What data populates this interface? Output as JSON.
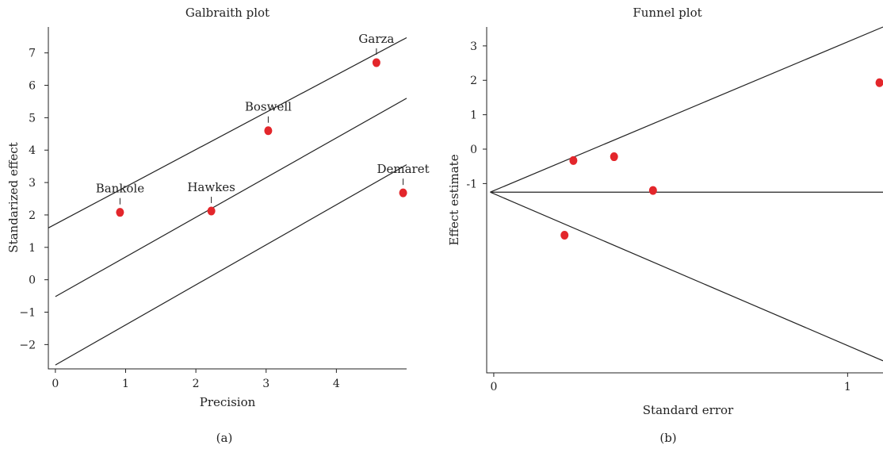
{
  "chart_data": [
    {
      "type": "scatter",
      "title": "Galbraith plot",
      "xlabel": "Precision",
      "ylabel": "Standarized effect",
      "caption": "(a)",
      "xlim": [
        -0.1,
        5.0
      ],
      "ylim": [
        -2.75,
        7.8
      ],
      "xticks": [
        "0",
        "1",
        "2",
        "3",
        "4"
      ],
      "yticks": [
        "7",
        "6",
        "5",
        "4",
        "3",
        "2",
        "1",
        "0",
        "−1",
        "−2"
      ],
      "points": [
        {
          "label": "Bankole",
          "x": 0.92,
          "y": 2.08
        },
        {
          "label": "Hawkes",
          "x": 2.22,
          "y": 2.12
        },
        {
          "label": "Boswell",
          "x": 3.03,
          "y": 4.6
        },
        {
          "label": "Garza",
          "x": 4.57,
          "y": 6.7
        },
        {
          "label": "Demaret",
          "x": 4.95,
          "y": 2.68
        }
      ],
      "lines": [
        {
          "x": [
            -0.1,
            5.0
          ],
          "y": [
            1.6,
            7.47
          ]
        },
        {
          "x": [
            0.0,
            5.0
          ],
          "y": [
            -0.52,
            5.6
          ]
        },
        {
          "x": [
            0.0,
            5.0
          ],
          "y": [
            -2.63,
            3.55
          ]
        }
      ]
    },
    {
      "type": "scatter",
      "title": "Funnel plot",
      "xlabel": "Standard error",
      "ylabel": "Effect estimate",
      "caption": "(b)",
      "xlim": [
        -0.02,
        1.1
      ],
      "ylim": [
        -6.5,
        3.55
      ],
      "xticks": [
        "0",
        "1"
      ],
      "yticks": [
        "3",
        "2",
        "1",
        "0",
        "-1"
      ],
      "points": [
        {
          "x": 0.2,
          "y": -2.5
        },
        {
          "x": 0.225,
          "y": -0.33
        },
        {
          "x": 0.34,
          "y": -0.22
        },
        {
          "x": 0.45,
          "y": -1.2
        },
        {
          "x": 1.09,
          "y": 1.93
        }
      ],
      "lines": [
        {
          "x": [
            -0.01,
            1.1
          ],
          "y": [
            -1.25,
            3.55
          ]
        },
        {
          "x": [
            -0.01,
            1.1
          ],
          "y": [
            -1.25,
            -1.25
          ]
        },
        {
          "x": [
            -0.01,
            1.1
          ],
          "y": [
            -1.25,
            -6.15
          ]
        }
      ]
    }
  ]
}
